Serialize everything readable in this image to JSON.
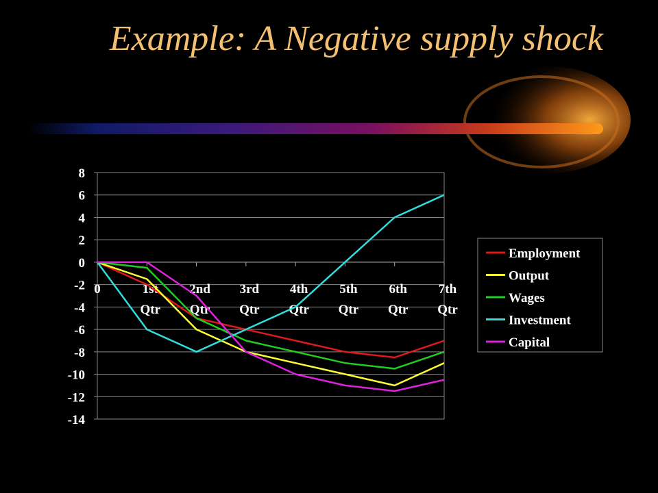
{
  "slide": {
    "title": "Example: A Negative supply shock"
  },
  "chart_data": {
    "type": "line",
    "title": "",
    "xlabel": "",
    "ylabel": "",
    "categories": [
      "0",
      "1st Qtr",
      "2nd Qtr",
      "3rd Qtr",
      "4th Qtr",
      "5th Qtr",
      "6th Qtr",
      "7th Qtr"
    ],
    "ylim": [
      -14,
      8
    ],
    "yticks": [
      8,
      6,
      4,
      2,
      0,
      -2,
      -4,
      -6,
      -8,
      -10,
      -12,
      -14
    ],
    "grid": "horizontal",
    "legend_position": "right",
    "series": [
      {
        "name": "Employment",
        "color": "#dd1a1a",
        "values": [
          0,
          -2,
          -5,
          -6,
          -7,
          -8,
          -8.5,
          -7
        ]
      },
      {
        "name": "Output",
        "color": "#ffff33",
        "values": [
          0,
          -1.5,
          -6,
          -8,
          -9,
          -10,
          -11,
          -9
        ]
      },
      {
        "name": "Wages",
        "color": "#22cc22",
        "values": [
          0,
          -0.5,
          -5,
          -7,
          -8,
          -9,
          -9.5,
          -8
        ]
      },
      {
        "name": "Investment",
        "color": "#33dddd",
        "values": [
          0,
          -6,
          -8,
          -6,
          -4,
          0,
          4,
          6
        ]
      },
      {
        "name": "Capital",
        "color": "#dd22dd",
        "values": [
          0,
          0,
          -3,
          -8,
          -10,
          -11,
          -11.5,
          -10.5
        ]
      }
    ]
  }
}
